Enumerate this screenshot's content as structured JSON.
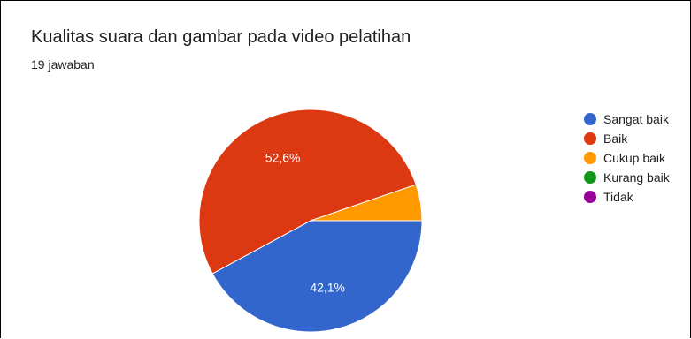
{
  "header": {
    "title": "Kualitas suara dan gambar pada video pelatihan",
    "subtitle": "19 jawaban"
  },
  "chart_data": {
    "type": "pie",
    "title": "Kualitas suara dan gambar pada video pelatihan",
    "subtitle": "19 jawaban",
    "categories": [
      "Sangat baik",
      "Baik",
      "Cukup baik",
      "Kurang baik",
      "Tidak"
    ],
    "values": [
      8,
      10,
      1,
      0,
      0
    ],
    "percent_labels": [
      "42,1%",
      "52,6%",
      "",
      "",
      ""
    ],
    "colors": [
      "#3366CC",
      "#DC3912",
      "#FF9900",
      "#109618",
      "#990099"
    ],
    "legend_position": "right"
  }
}
